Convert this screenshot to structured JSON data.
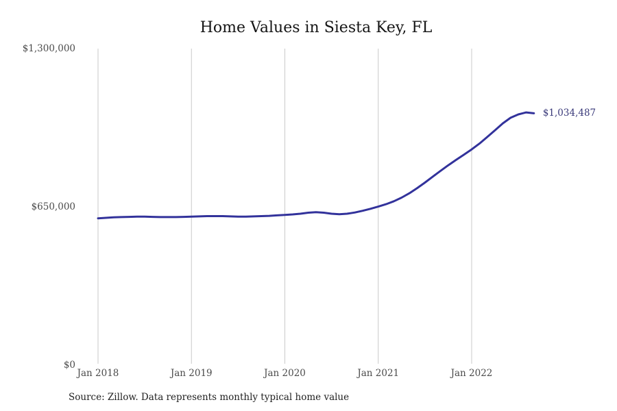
{
  "chart_data": {
    "type": "line",
    "title": "Home Values in Siesta Key, FL",
    "series_name": "Monthly typical home value",
    "x_unit": "month",
    "months": [
      "2018-01",
      "2018-02",
      "2018-03",
      "2018-04",
      "2018-05",
      "2018-06",
      "2018-07",
      "2018-08",
      "2018-09",
      "2018-10",
      "2018-11",
      "2018-12",
      "2019-01",
      "2019-02",
      "2019-03",
      "2019-04",
      "2019-05",
      "2019-06",
      "2019-07",
      "2019-08",
      "2019-09",
      "2019-10",
      "2019-11",
      "2019-12",
      "2020-01",
      "2020-02",
      "2020-03",
      "2020-04",
      "2020-05",
      "2020-06",
      "2020-07",
      "2020-08",
      "2020-09",
      "2020-10",
      "2020-11",
      "2020-12",
      "2021-01",
      "2021-02",
      "2021-03",
      "2021-04",
      "2021-05",
      "2021-06",
      "2021-07",
      "2021-08",
      "2021-09",
      "2021-10",
      "2021-11",
      "2021-12",
      "2022-01",
      "2022-02",
      "2022-03",
      "2022-04",
      "2022-05",
      "2022-06",
      "2022-07",
      "2022-08",
      "2022-09"
    ],
    "values": [
      603000,
      605000,
      607000,
      608000,
      609000,
      610000,
      610000,
      609000,
      608000,
      608000,
      608000,
      609000,
      610000,
      611000,
      612000,
      612000,
      612000,
      611000,
      610000,
      610000,
      611000,
      612000,
      613000,
      615000,
      617000,
      619000,
      622000,
      626000,
      628000,
      626000,
      622000,
      620000,
      622000,
      627000,
      634000,
      642000,
      651000,
      661000,
      673000,
      688000,
      706000,
      727000,
      750000,
      774000,
      798000,
      821000,
      843000,
      864000,
      886000,
      910000,
      937000,
      965000,
      993000,
      1016000,
      1030000,
      1038000,
      1034487
    ],
    "final_value": 1034487,
    "end_label": "$1,034,487",
    "x_ticks": [
      {
        "label": "Jan 2018",
        "month": 0
      },
      {
        "label": "Jan 2019",
        "month": 12
      },
      {
        "label": "Jan 2020",
        "month": 24
      },
      {
        "label": "Jan 2021",
        "month": 36
      },
      {
        "label": "Jan 2022",
        "month": 48
      }
    ],
    "y_ticks": [
      {
        "label": "$1,300,000",
        "value": 1300000
      },
      {
        "label": "$650,000",
        "value": 650000
      },
      {
        "label": "$0",
        "value": 0
      }
    ],
    "ylim": [
      0,
      1300000
    ],
    "grid": "vertical-only",
    "legend": "none",
    "colors": {
      "line": "#32329b",
      "grid": "#c9c9c9",
      "annotation": "#373778",
      "axis_text": "#4a4a4a",
      "title_text": "#151515"
    },
    "source_note": "Source: Zillow. Data represents monthly typical home value"
  }
}
